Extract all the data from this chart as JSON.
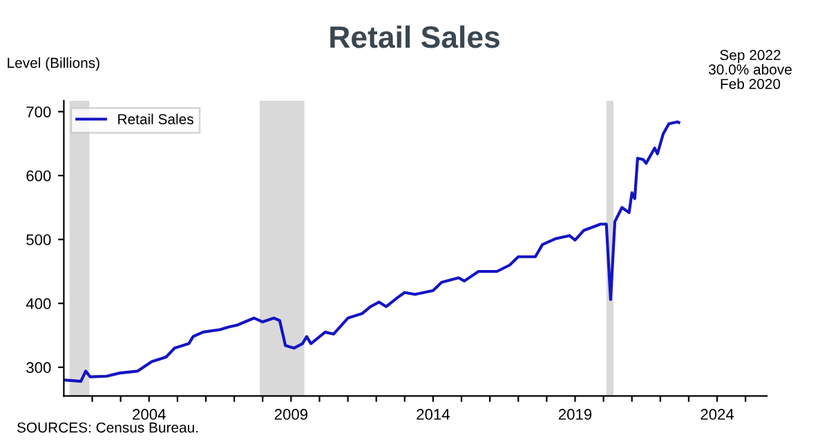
{
  "chart_data": {
    "type": "line",
    "title": "Retail Sales",
    "ylabel": "Level (Billions)",
    "annotations": [
      "Sep 2022\n30.0% above\nFeb 2020",
      "SOURCES: Census Bureau."
    ],
    "series": [
      {
        "name": "Retail Sales",
        "color": "#1414c4",
        "x": [
          2001.05,
          2001.6,
          2001.77,
          2001.93,
          2002.5,
          2002.97,
          2003.6,
          2004.1,
          2004.6,
          2004.9,
          2005.4,
          2005.55,
          2005.9,
          2006.5,
          2006.8,
          2007.1,
          2007.7,
          2008.0,
          2008.4,
          2008.6,
          2008.8,
          2009.1,
          2009.4,
          2009.55,
          2009.7,
          2010.2,
          2010.5,
          2011.0,
          2011.5,
          2011.8,
          2012.1,
          2012.35,
          2012.75,
          2013.0,
          2013.36,
          2014.0,
          2014.3,
          2014.9,
          2015.1,
          2015.6,
          2016.25,
          2016.7,
          2017.0,
          2017.6,
          2017.85,
          2018.3,
          2018.8,
          2019.0,
          2019.3,
          2019.9,
          2020.1,
          2020.25,
          2020.4,
          2020.65,
          2020.9,
          2021.0,
          2021.1,
          2021.2,
          2021.4,
          2021.5,
          2021.8,
          2021.9,
          2022.1,
          2022.3,
          2022.6,
          2022.65
        ],
        "values": [
          280,
          278,
          294,
          285,
          286,
          291,
          294,
          309,
          316,
          330,
          337,
          348,
          355,
          359,
          363,
          366,
          377,
          371,
          377,
          373,
          334,
          330,
          337,
          348,
          337,
          355,
          352,
          377,
          384,
          395,
          402,
          395,
          409,
          417,
          414,
          420,
          433,
          440,
          435,
          450,
          450,
          460,
          473,
          473,
          492,
          501,
          506,
          499,
          514,
          524,
          524,
          406,
          528,
          550,
          542,
          573,
          564,
          627,
          625,
          619,
          643,
          634,
          665,
          681,
          684,
          683
        ]
      }
    ],
    "bands": [
      {
        "axis": "x",
        "from": 2001.2,
        "to": 2001.9,
        "color": "#d9d9d9"
      },
      {
        "axis": "x",
        "from": 2007.9,
        "to": 2009.47,
        "color": "#d9d9d9"
      },
      {
        "axis": "x",
        "from": 2020.1,
        "to": 2020.35,
        "color": "#d9d9d9"
      }
    ],
    "xlim": [
      2001,
      2025.75
    ],
    "xticks": [
      {
        "value": 2002,
        "label": null
      },
      {
        "value": 2003,
        "label": null
      },
      2004,
      {
        "value": 2005,
        "label": null
      },
      {
        "value": 2006,
        "label": null
      },
      {
        "value": 2007,
        "label": null
      },
      {
        "value": 2008,
        "label": null
      },
      2009,
      {
        "value": 2010,
        "label": null
      },
      {
        "value": 2011,
        "label": null
      },
      {
        "value": 2012,
        "label": null
      },
      {
        "value": 2013,
        "label": null
      },
      2014,
      {
        "value": 2015,
        "label": null
      },
      {
        "value": 2016,
        "label": null
      },
      {
        "value": 2017,
        "label": null
      },
      {
        "value": 2018,
        "label": null
      },
      2019,
      {
        "value": 2020,
        "label": null
      },
      {
        "value": 2021,
        "label": null
      },
      {
        "value": 2022,
        "label": null
      },
      {
        "value": 2023,
        "label": null
      },
      2024,
      {
        "value": 2025,
        "label": null
      }
    ],
    "ylim": [
      255,
      717
    ],
    "yticks": [
      300,
      400,
      500,
      600,
      700
    ],
    "legend": "top left",
    "grid": false,
    "marker": "none",
    "line_style": "solid"
  }
}
